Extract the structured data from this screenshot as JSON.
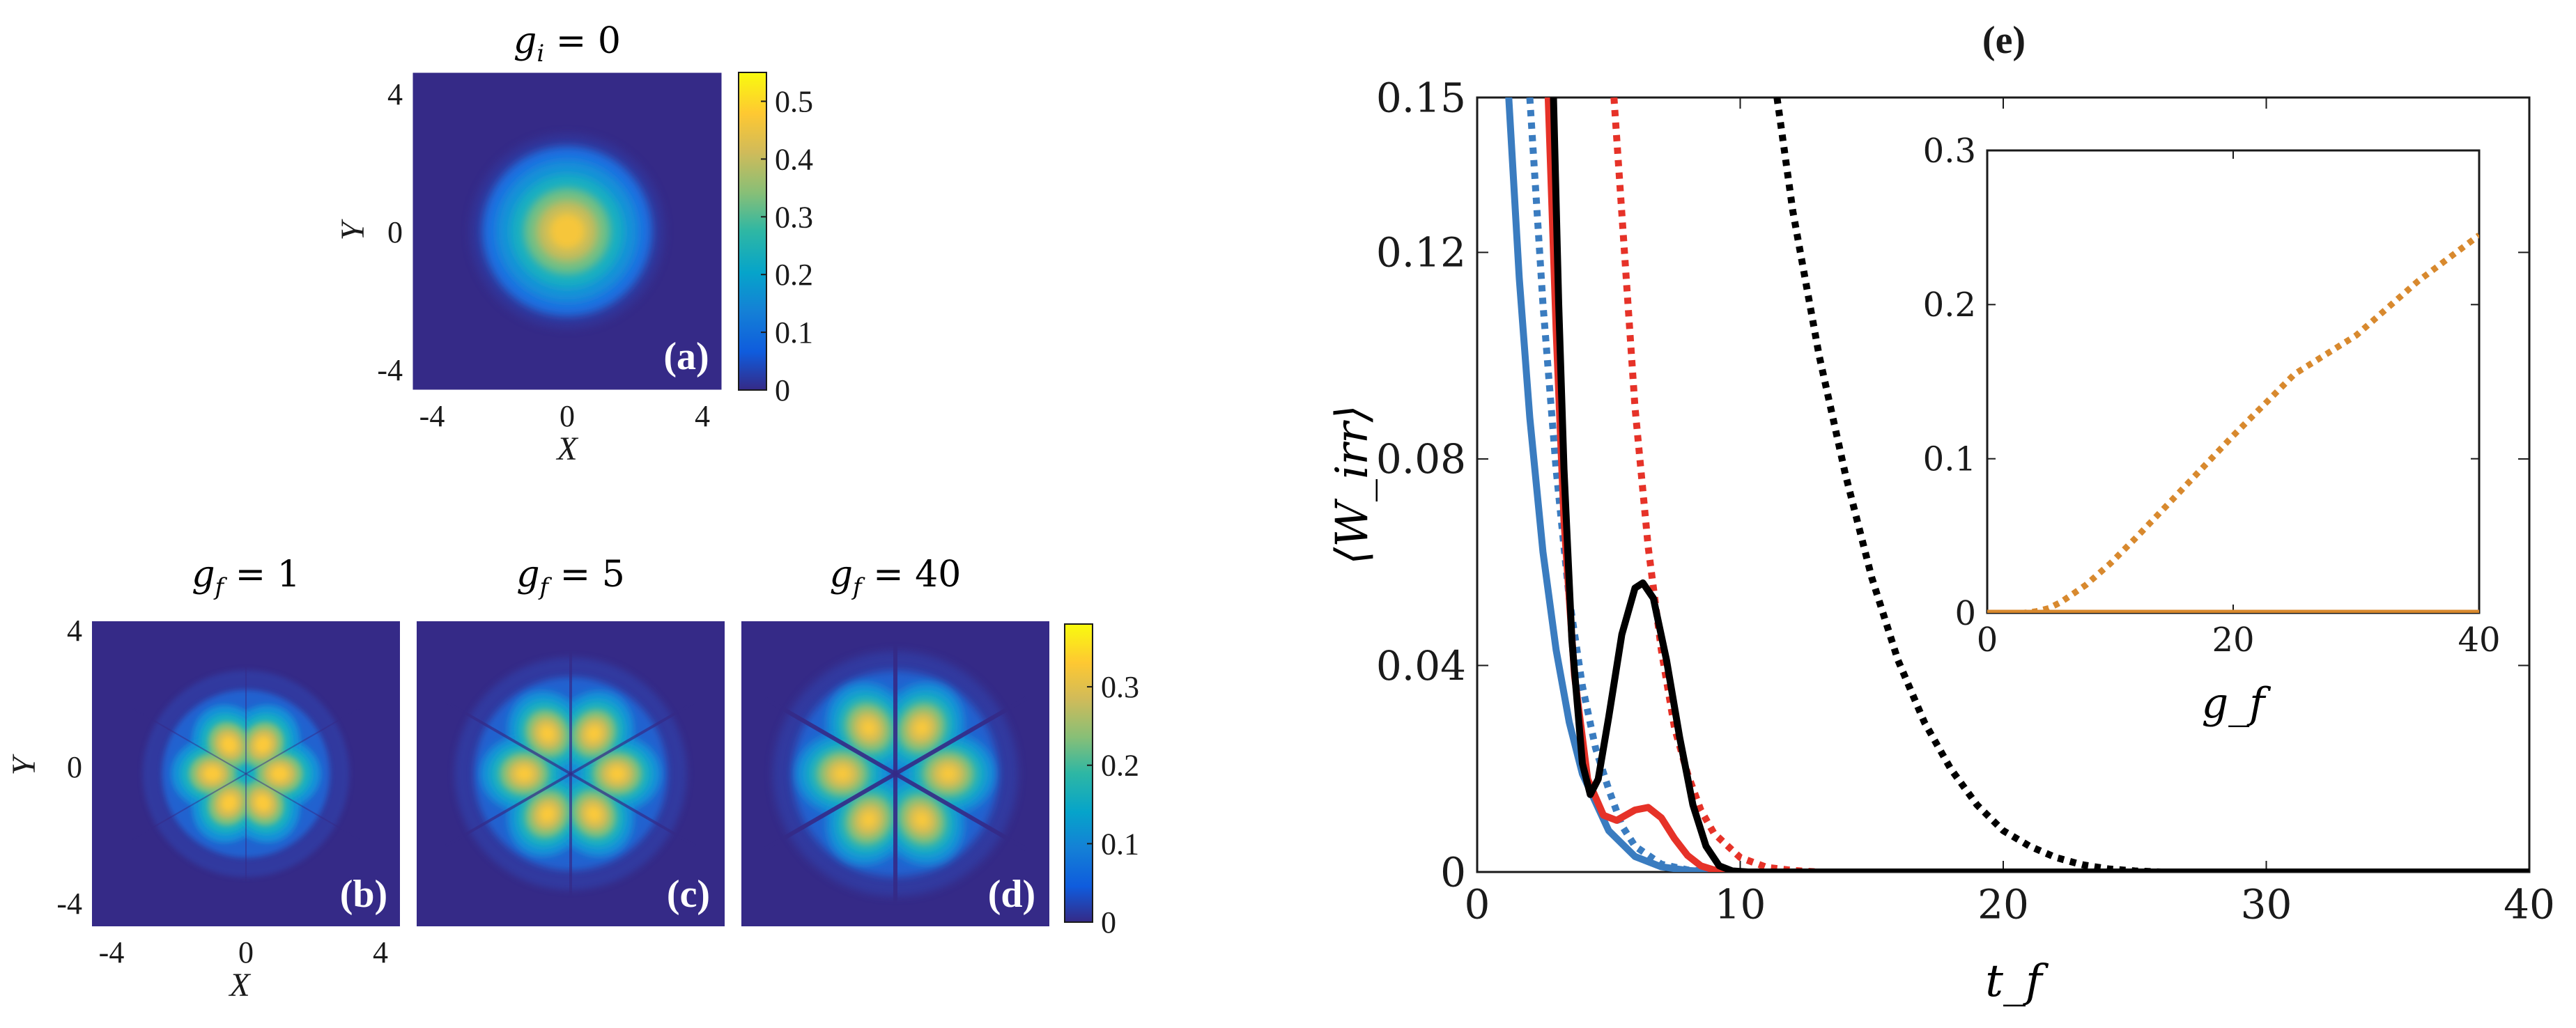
{
  "figure": {
    "panel_labels": [
      "(a)",
      "(b)",
      "(c)",
      "(d)",
      "(e)"
    ]
  },
  "colors": {
    "blue": "#3a7cc0",
    "red": "#e63228",
    "black": "#000000",
    "orange": "#d8892e",
    "heatmap_bg": "#352a87",
    "colormap": [
      "#352a87",
      "#0f5cdd",
      "#1481d6",
      "#06a4ca",
      "#2eb7a4",
      "#87bf77",
      "#d1bb59",
      "#fec832",
      "#f9fb0e"
    ]
  },
  "chart_data": [
    {
      "type": "heatmap",
      "panel": "(a)",
      "title": "g_i = 0",
      "title_parts": {
        "g": "g",
        "sub": "i",
        "rest": " = 0"
      },
      "xlabel": "X",
      "ylabel": "Y",
      "xticks": [
        "-4",
        "0",
        "4"
      ],
      "yticks": [
        "4",
        "0",
        "-4"
      ],
      "colorbar_ticks": [
        "0.5",
        "0.4",
        "0.3",
        "0.2",
        "0.1",
        "0"
      ],
      "colorbar_range": [
        0,
        0.55
      ],
      "pattern": "gaussian",
      "peak": 0.55
    },
    {
      "type": "heatmap",
      "panel": "(b)",
      "title_parts": {
        "g": "g",
        "sub": "f",
        "rest": " = 1"
      },
      "xlabel": "X",
      "ylabel": "Y",
      "xticks": [
        "-4",
        "0",
        "4"
      ],
      "yticks": [
        "4",
        "0",
        "-4"
      ],
      "pattern": "six-lobe",
      "lobes": 6,
      "lobe_radius": 1.05,
      "peak": 0.36
    },
    {
      "type": "heatmap",
      "panel": "(c)",
      "title_parts": {
        "g": "g",
        "sub": "f",
        "rest": " = 5"
      },
      "pattern": "six-lobe",
      "lobes": 6,
      "lobe_radius": 1.45,
      "peak": 0.36
    },
    {
      "type": "heatmap",
      "panel": "(d)",
      "title_parts": {
        "g": "g",
        "sub": "f",
        "rest": " = 40"
      },
      "colorbar_ticks": [
        "0.3",
        "0.2",
        "0.1",
        "0"
      ],
      "colorbar_range": [
        0,
        0.38
      ],
      "pattern": "six-lobe",
      "lobes": 6,
      "lobe_radius": 1.65,
      "peak": 0.36
    },
    {
      "type": "line",
      "panel": "(e)",
      "xlabel": "t_f",
      "ylabel": "⟨W_irr⟩",
      "xlim": [
        0,
        40
      ],
      "ylim": [
        0,
        0.15
      ],
      "xticks": [
        "0",
        "10",
        "20",
        "30",
        "40"
      ],
      "yticks": [
        "0",
        "0.04",
        "0.08",
        "0.12",
        "0.15"
      ],
      "series": [
        {
          "name": "blue-solid",
          "color": "blue",
          "dash": false,
          "points": [
            [
              1.2,
              0.15
            ],
            [
              1.6,
              0.115
            ],
            [
              2.0,
              0.088
            ],
            [
              2.5,
              0.062
            ],
            [
              3.0,
              0.043
            ],
            [
              3.5,
              0.029
            ],
            [
              4.0,
              0.019
            ],
            [
              5.0,
              0.008
            ],
            [
              6.0,
              0.003
            ],
            [
              7.0,
              0.001
            ],
            [
              8.0,
              0.0003
            ],
            [
              9.0,
              0.0
            ],
            [
              40.0,
              0.0
            ]
          ]
        },
        {
          "name": "blue-dotted",
          "color": "blue",
          "dash": true,
          "points": [
            [
              2.0,
              0.15
            ],
            [
              2.5,
              0.11
            ],
            [
              3.0,
              0.078
            ],
            [
              3.5,
              0.053
            ],
            [
              4.0,
              0.036
            ],
            [
              4.5,
              0.024
            ],
            [
              5.0,
              0.016
            ],
            [
              5.5,
              0.009
            ],
            [
              6.0,
              0.005
            ],
            [
              7.0,
              0.0015
            ],
            [
              8.0,
              0.0004
            ],
            [
              9.0,
              0.0
            ],
            [
              40.0,
              0.0
            ]
          ]
        },
        {
          "name": "red-solid",
          "color": "red",
          "dash": false,
          "points": [
            [
              2.7,
              0.15
            ],
            [
              3.0,
              0.105
            ],
            [
              3.3,
              0.068
            ],
            [
              3.7,
              0.038
            ],
            [
              4.2,
              0.018
            ],
            [
              4.8,
              0.011
            ],
            [
              5.3,
              0.01
            ],
            [
              6.0,
              0.012
            ],
            [
              6.5,
              0.0125
            ],
            [
              7.0,
              0.0105
            ],
            [
              7.5,
              0.0065
            ],
            [
              8.0,
              0.0032
            ],
            [
              8.5,
              0.0012
            ],
            [
              9.0,
              0.0004
            ],
            [
              10.0,
              0.0
            ],
            [
              40.0,
              0.0
            ]
          ]
        },
        {
          "name": "red-dotted",
          "color": "red",
          "dash": true,
          "points": [
            [
              5.2,
              0.15
            ],
            [
              5.6,
              0.12
            ],
            [
              6.0,
              0.09
            ],
            [
              6.5,
              0.063
            ],
            [
              7.0,
              0.043
            ],
            [
              7.5,
              0.028
            ],
            [
              8.0,
              0.019
            ],
            [
              8.5,
              0.012
            ],
            [
              9.0,
              0.0075
            ],
            [
              10.0,
              0.0028
            ],
            [
              11.0,
              0.0009
            ],
            [
              12.0,
              0.0003
            ],
            [
              13.0,
              0.0
            ],
            [
              40.0,
              0.0
            ]
          ]
        },
        {
          "name": "black-solid",
          "color": "black",
          "dash": false,
          "points": [
            [
              2.9,
              0.15
            ],
            [
              3.1,
              0.11
            ],
            [
              3.3,
              0.078
            ],
            [
              3.6,
              0.045
            ],
            [
              4.0,
              0.021
            ],
            [
              4.3,
              0.015
            ],
            [
              4.6,
              0.018
            ],
            [
              5.0,
              0.03
            ],
            [
              5.5,
              0.046
            ],
            [
              6.0,
              0.055
            ],
            [
              6.3,
              0.056
            ],
            [
              6.7,
              0.053
            ],
            [
              7.2,
              0.041
            ],
            [
              7.7,
              0.026
            ],
            [
              8.2,
              0.013
            ],
            [
              8.7,
              0.005
            ],
            [
              9.2,
              0.0012
            ],
            [
              9.7,
              0.0002
            ],
            [
              10.3,
              0.0
            ],
            [
              40.0,
              0.0
            ]
          ]
        },
        {
          "name": "black-dotted",
          "color": "black",
          "dash": true,
          "points": [
            [
              11.4,
              0.15
            ],
            [
              12.0,
              0.128
            ],
            [
              13.0,
              0.1
            ],
            [
              14.0,
              0.077
            ],
            [
              15.0,
              0.057
            ],
            [
              16.0,
              0.041
            ],
            [
              17.0,
              0.029
            ],
            [
              18.0,
              0.02
            ],
            [
              19.0,
              0.013
            ],
            [
              20.0,
              0.008
            ],
            [
              21.0,
              0.005
            ],
            [
              22.0,
              0.0028
            ],
            [
              23.0,
              0.0014
            ],
            [
              24.0,
              0.0006
            ],
            [
              25.0,
              0.0002
            ],
            [
              26.0,
              0.0
            ],
            [
              40.0,
              0.0
            ]
          ]
        }
      ],
      "inset": {
        "type": "line",
        "xlabel": "g_f",
        "xlim": [
          0,
          40
        ],
        "ylim": [
          0,
          0.3
        ],
        "xticks": [
          "0",
          "20",
          "40"
        ],
        "yticks": [
          "0",
          "0.1",
          "0.2",
          "0.3"
        ],
        "series": [
          {
            "name": "orange-solid",
            "color": "orange",
            "dash": false,
            "points": [
              [
                0,
                0
              ],
              [
                40,
                0
              ]
            ]
          },
          {
            "name": "orange-dotted",
            "color": "orange",
            "dash": true,
            "points": [
              [
                0,
                0
              ],
              [
                3,
                0
              ],
              [
                4,
                0.001
              ],
              [
                5,
                0.003
              ],
              [
                6,
                0.007
              ],
              [
                8,
                0.018
              ],
              [
                10,
                0.032
              ],
              [
                12,
                0.048
              ],
              [
                15,
                0.073
              ],
              [
                20,
                0.115
              ],
              [
                25,
                0.155
              ],
              [
                30,
                0.18
              ],
              [
                35,
                0.215
              ],
              [
                40,
                0.245
              ]
            ]
          }
        ]
      }
    }
  ]
}
